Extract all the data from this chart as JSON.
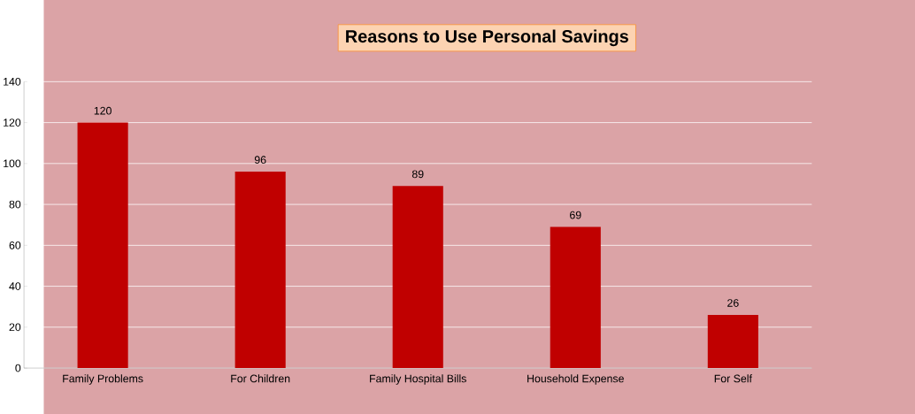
{
  "chart_data": {
    "type": "bar",
    "title": "Reasons to Use Personal Savings",
    "categories": [
      "Family Problems",
      "For Children",
      "Family Hospital Bills",
      "Household Expense",
      "For Self"
    ],
    "values": [
      120,
      96,
      89,
      69,
      26
    ],
    "color": "#c00000",
    "ylim": [
      0,
      140
    ],
    "yticks": [
      0,
      20,
      40,
      60,
      80,
      100,
      120,
      140
    ],
    "grid": "y",
    "data_labels": true
  }
}
